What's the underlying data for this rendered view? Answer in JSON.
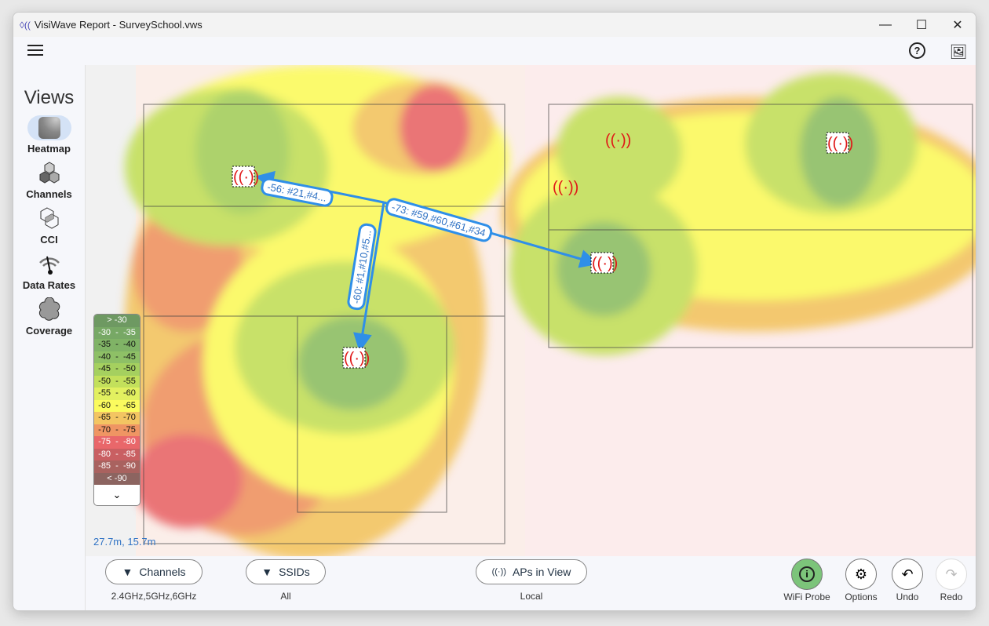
{
  "window": {
    "title": "VisiWave Report - SurveySchool.vws",
    "minimize": "—",
    "maximize": "☐",
    "close": "✕"
  },
  "toolbar": {
    "menu_icon": "hamburger-icon",
    "help_icon": "help-icon",
    "gallery_icon": "image-gallery-icon"
  },
  "sidebar": {
    "title": "Views",
    "items": [
      {
        "label": "Heatmap",
        "icon": "heatmap-icon",
        "selected": true
      },
      {
        "label": "Channels",
        "icon": "channels-icon"
      },
      {
        "label": "CCI",
        "icon": "cci-icon"
      },
      {
        "label": "Data Rates",
        "icon": "data-rates-icon"
      },
      {
        "label": "Coverage",
        "icon": "coverage-icon"
      }
    ]
  },
  "legend": {
    "rows": [
      {
        "label": "> -30",
        "color": "#6e9962",
        "fg": "#fff"
      },
      {
        "label": "-30  -  -35",
        "color": "#77a865",
        "fg": "#fff"
      },
      {
        "label": "-35  -  -40",
        "color": "#80b366",
        "fg": "#111"
      },
      {
        "label": "-40  -  -45",
        "color": "#8ec066",
        "fg": "#111"
      },
      {
        "label": "-45  -  -50",
        "color": "#a5d05f",
        "fg": "#111"
      },
      {
        "label": "-50  -  -55",
        "color": "#c3e05b",
        "fg": "#111"
      },
      {
        "label": "-55  -  -60",
        "color": "#e2f060",
        "fg": "#111"
      },
      {
        "label": "-60  -  -65",
        "color": "#fbfb5e",
        "fg": "#111"
      },
      {
        "label": "-65  -  -70",
        "color": "#f3c562",
        "fg": "#111"
      },
      {
        "label": "-70  -  -75",
        "color": "#ef9563",
        "fg": "#111"
      },
      {
        "label": "-75  -  -80",
        "color": "#e9676a",
        "fg": "#fff"
      },
      {
        "label": "-80  -  -85",
        "color": "#c95f62",
        "fg": "#fff"
      },
      {
        "label": "-85  -  -90",
        "color": "#a9625f",
        "fg": "#fff"
      },
      {
        "label": "< -90",
        "color": "#8c6460",
        "fg": "#fff"
      }
    ],
    "expand": "⌄"
  },
  "coordinates": "27.7m, 15.7m",
  "arrows": [
    {
      "label": "-56: #21,#4..."
    },
    {
      "label": "-73: #59,#60,#61,#34"
    },
    {
      "label": "-60: #1,#10,#5..."
    }
  ],
  "filters": {
    "channels": {
      "label": "Channels",
      "value": "2.4GHz,5GHz,6GHz"
    },
    "ssids": {
      "label": "SSIDs",
      "value": "All"
    },
    "aps": {
      "label": "APs in View",
      "value": "Local"
    }
  },
  "actions": {
    "wifi_probe": "WiFi Probe",
    "options": "Options",
    "undo": "Undo",
    "redo": "Redo"
  },
  "colors": {
    "accent": "#2f8fe8",
    "probe_active": "#7cc47a"
  }
}
